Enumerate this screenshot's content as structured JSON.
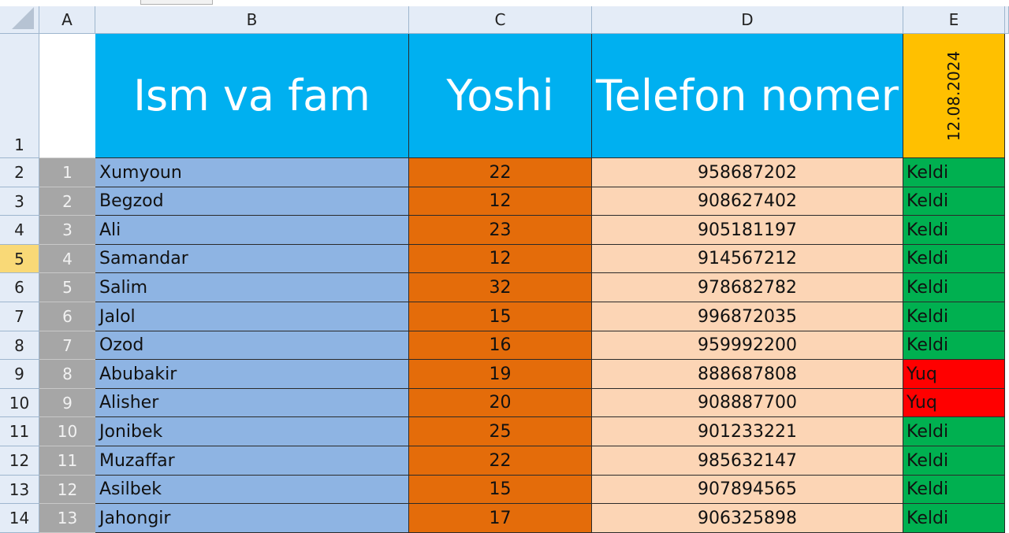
{
  "sheet": {
    "column_headers": [
      "A",
      "B",
      "C",
      "D",
      "E"
    ],
    "row_numbers": [
      "1",
      "2",
      "3",
      "4",
      "5",
      "6",
      "7",
      "8",
      "9",
      "10",
      "11",
      "12",
      "13",
      "14"
    ],
    "selected_row": "5",
    "header_row": {
      "name": "Ism va fam",
      "age": "Yoshi",
      "phone": "Telefon nomer",
      "date": "12.08.2024"
    },
    "rows": [
      {
        "num": "1",
        "name": "Xumyoun",
        "age": "22",
        "phone": "958687202",
        "status": "Keldi"
      },
      {
        "num": "2",
        "name": "Begzod",
        "age": "12",
        "phone": "908627402",
        "status": "Keldi"
      },
      {
        "num": "3",
        "name": "Ali",
        "age": "23",
        "phone": "905181197",
        "status": "Keldi"
      },
      {
        "num": "4",
        "name": "Samandar",
        "age": "12",
        "phone": "914567212",
        "status": "Keldi"
      },
      {
        "num": "5",
        "name": "Salim",
        "age": "32",
        "phone": "978682782",
        "status": "Keldi"
      },
      {
        "num": "6",
        "name": "Jalol",
        "age": "15",
        "phone": "996872035",
        "status": "Keldi"
      },
      {
        "num": "7",
        "name": "Ozod",
        "age": "16",
        "phone": "959992200",
        "status": "Keldi"
      },
      {
        "num": "8",
        "name": "Abubakir",
        "age": "19",
        "phone": "888687808",
        "status": "Yuq"
      },
      {
        "num": "9",
        "name": "Alisher",
        "age": "20",
        "phone": "908887700",
        "status": "Yuq"
      },
      {
        "num": "10",
        "name": "Jonibek",
        "age": "25",
        "phone": "901233221",
        "status": "Keldi"
      },
      {
        "num": "11",
        "name": "Muzaffar",
        "age": "22",
        "phone": "985632147",
        "status": "Keldi"
      },
      {
        "num": "12",
        "name": "Asilbek",
        "age": "15",
        "phone": "907894565",
        "status": "Keldi"
      },
      {
        "num": "13",
        "name": "Jahongir",
        "age": "17",
        "phone": "906325898",
        "status": "Keldi"
      }
    ]
  },
  "colors": {
    "header_blue": "#00b0f0",
    "header_date": "#ffc000",
    "name_fill": "#8eb4e3",
    "age_fill": "#e46c0a",
    "phone_fill": "#fcd5b5",
    "present": "#00b050",
    "absent": "#ff0000",
    "number_fill": "#a6a6a6"
  }
}
